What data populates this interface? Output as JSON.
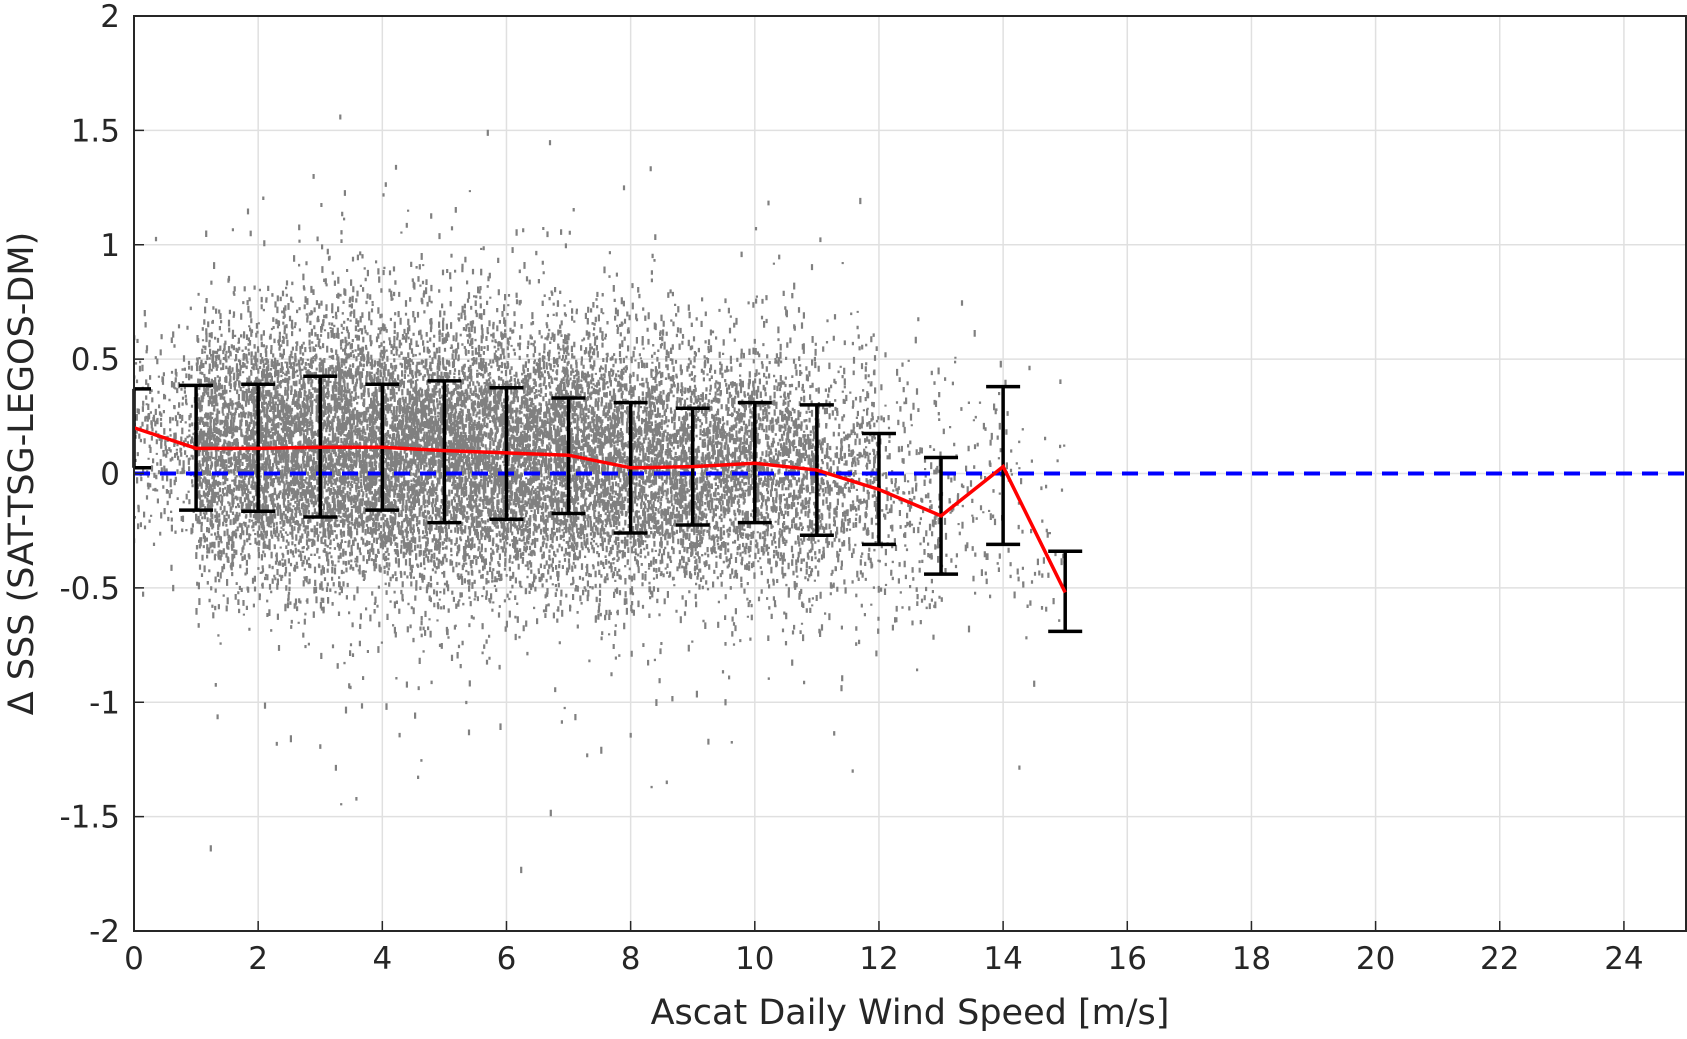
{
  "chart_data": {
    "type": "scatter",
    "title": "",
    "xlabel": "Ascat Daily Wind Speed [m/s]",
    "ylabel": "Δ SSS (SAT-TSG-LEGOS-DM)",
    "xlim": [
      0,
      25
    ],
    "ylim": [
      -2,
      2
    ],
    "xticks": [
      0,
      2,
      4,
      6,
      8,
      10,
      12,
      14,
      16,
      18,
      20,
      22,
      24
    ],
    "xtick_labels": [
      "0",
      "2",
      "4",
      "6",
      "8",
      "10",
      "12",
      "14",
      "16",
      "18",
      "20",
      "22",
      "24"
    ],
    "yticks": [
      -2,
      -1.5,
      -1,
      -0.5,
      0,
      0.5,
      1,
      1.5,
      2
    ],
    "ytick_labels": [
      "-2",
      "-1.5",
      "-1",
      "-0.5",
      "0",
      "0.5",
      "1",
      "1.5",
      "2"
    ],
    "grid": true,
    "scatter": {
      "color": "#808080",
      "density": [
        {
          "x": [
            0,
            1
          ],
          "y_mean": 0.18,
          "y_sd": 0.2,
          "n": 300
        },
        {
          "x": [
            1,
            2
          ],
          "y_mean": 0.11,
          "y_sd": 0.27,
          "n": 1400
        },
        {
          "x": [
            2,
            3
          ],
          "y_mean": 0.11,
          "y_sd": 0.28,
          "n": 1700
        },
        {
          "x": [
            3,
            4
          ],
          "y_mean": 0.11,
          "y_sd": 0.3,
          "n": 1800
        },
        {
          "x": [
            4,
            5
          ],
          "y_mean": 0.1,
          "y_sd": 0.29,
          "n": 1800
        },
        {
          "x": [
            5,
            6
          ],
          "y_mean": 0.09,
          "y_sd": 0.3,
          "n": 1700
        },
        {
          "x": [
            6,
            7
          ],
          "y_mean": 0.08,
          "y_sd": 0.28,
          "n": 1600
        },
        {
          "x": [
            7,
            8
          ],
          "y_mean": 0.06,
          "y_sd": 0.28,
          "n": 1500
        },
        {
          "x": [
            8,
            9
          ],
          "y_mean": 0.03,
          "y_sd": 0.27,
          "n": 1300
        },
        {
          "x": [
            9,
            10
          ],
          "y_mean": 0.04,
          "y_sd": 0.26,
          "n": 1100
        },
        {
          "x": [
            10,
            11
          ],
          "y_mean": 0.03,
          "y_sd": 0.27,
          "n": 900
        },
        {
          "x": [
            11,
            12
          ],
          "y_mean": -0.02,
          "y_sd": 0.26,
          "n": 500
        },
        {
          "x": [
            12,
            13
          ],
          "y_mean": -0.1,
          "y_sd": 0.26,
          "n": 220
        },
        {
          "x": [
            13,
            14
          ],
          "y_mean": -0.1,
          "y_sd": 0.3,
          "n": 100
        },
        {
          "x": [
            14,
            15
          ],
          "y_mean": -0.2,
          "y_sd": 0.35,
          "n": 60
        }
      ]
    },
    "series": [
      {
        "type": "line",
        "color": "#ff0000",
        "x": [
          0,
          1,
          2,
          3,
          4,
          5,
          6,
          7,
          8,
          9,
          10,
          11,
          12,
          13,
          14,
          15
        ],
        "y": [
          0.2,
          0.11,
          0.11,
          0.115,
          0.115,
          0.1,
          0.09,
          0.08,
          0.025,
          0.03,
          0.045,
          0.015,
          -0.07,
          -0.185,
          0.03,
          -0.52
        ]
      },
      {
        "type": "errorbar",
        "color": "#000000",
        "x": [
          0,
          1,
          2,
          3,
          4,
          5,
          6,
          7,
          8,
          9,
          10,
          11,
          12,
          13,
          14,
          15
        ],
        "upper": [
          0.37,
          0.385,
          0.39,
          0.425,
          0.39,
          0.405,
          0.375,
          0.33,
          0.31,
          0.285,
          0.31,
          0.3,
          0.175,
          0.07,
          0.38,
          -0.34
        ],
        "lower": [
          0.025,
          -0.16,
          -0.165,
          -0.19,
          -0.16,
          -0.215,
          -0.2,
          -0.175,
          -0.26,
          -0.225,
          -0.215,
          -0.27,
          -0.31,
          -0.44,
          -0.31,
          -0.69
        ]
      },
      {
        "type": "hline",
        "color": "#0000ff",
        "y": 0,
        "style": "dashed"
      }
    ]
  }
}
